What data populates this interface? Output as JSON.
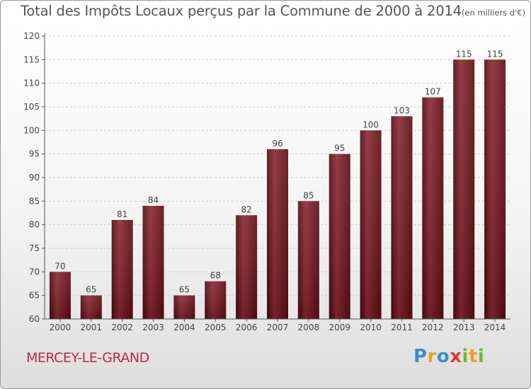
{
  "chart_data": {
    "type": "bar",
    "title": "Total des Impôts Locaux perçus par la Commune de 2000 à 2014",
    "subtitle": "(en milliers d'€)",
    "categories": [
      "2000",
      "2001",
      "2002",
      "2003",
      "2004",
      "2005",
      "2006",
      "2007",
      "2008",
      "2009",
      "2010",
      "2011",
      "2012",
      "2013",
      "2014"
    ],
    "values": [
      70,
      65,
      81,
      84,
      65,
      68,
      82,
      96,
      85,
      95,
      100,
      103,
      107,
      115,
      115
    ],
    "ylim": [
      60,
      120
    ],
    "yticks": [
      60,
      65,
      70,
      75,
      80,
      85,
      90,
      95,
      100,
      105,
      110,
      115,
      120
    ],
    "grid": "horizontal dashed",
    "bar_color": "#6e1219",
    "xlabel": "",
    "ylabel": ""
  },
  "footer": {
    "commune": "MERCEY-LE-GRAND",
    "logo": "Proxiti"
  }
}
